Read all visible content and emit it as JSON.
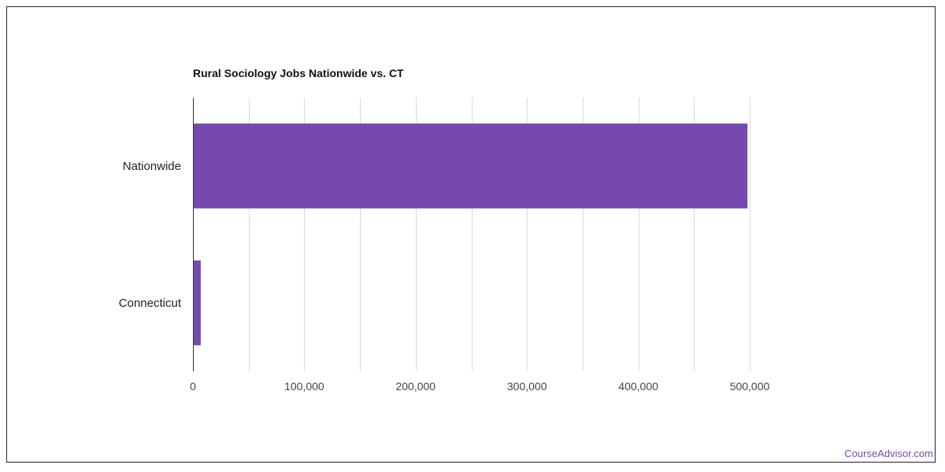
{
  "chart_data": {
    "type": "bar",
    "orientation": "horizontal",
    "title": "Rural Sociology Jobs Nationwide vs. CT",
    "categories": [
      "Nationwide",
      "Connecticut"
    ],
    "values": [
      498000,
      7000
    ],
    "xlim": [
      0,
      500000
    ],
    "xticks": [
      0,
      100000,
      200000,
      300000,
      400000,
      500000
    ],
    "xtick_labels": [
      "0",
      "100,000",
      "200,000",
      "300,000",
      "400,000",
      "500,000"
    ],
    "grid": true,
    "bar_color": "#7549ae"
  },
  "watermark": "CourseAdvisor.com"
}
